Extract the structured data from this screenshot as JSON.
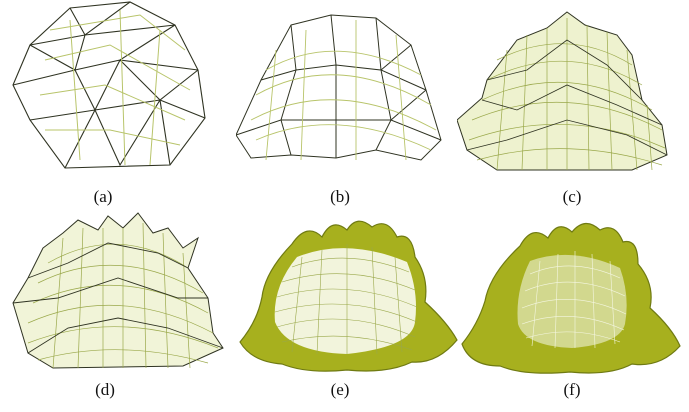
{
  "figure": {
    "panels": [
      {
        "id": "a",
        "label": "(a)",
        "style": "coarse-wireframe"
      },
      {
        "id": "b",
        "label": "(b)",
        "style": "wireframe"
      },
      {
        "id": "c",
        "label": "(c)",
        "style": "dense-wireframe"
      },
      {
        "id": "d",
        "label": "(d)",
        "style": "spiked-wireframe"
      },
      {
        "id": "e",
        "label": "(e)",
        "style": "partially-shaded"
      },
      {
        "id": "f",
        "label": "(f)",
        "style": "shaded"
      }
    ],
    "colors": {
      "background": "#ffffff",
      "wire_dark": "#2f3322",
      "wire_light": "#b8c46a",
      "surface": "#a7b01e",
      "surface_dark": "#6f7a12",
      "caption": "#111111"
    }
  }
}
